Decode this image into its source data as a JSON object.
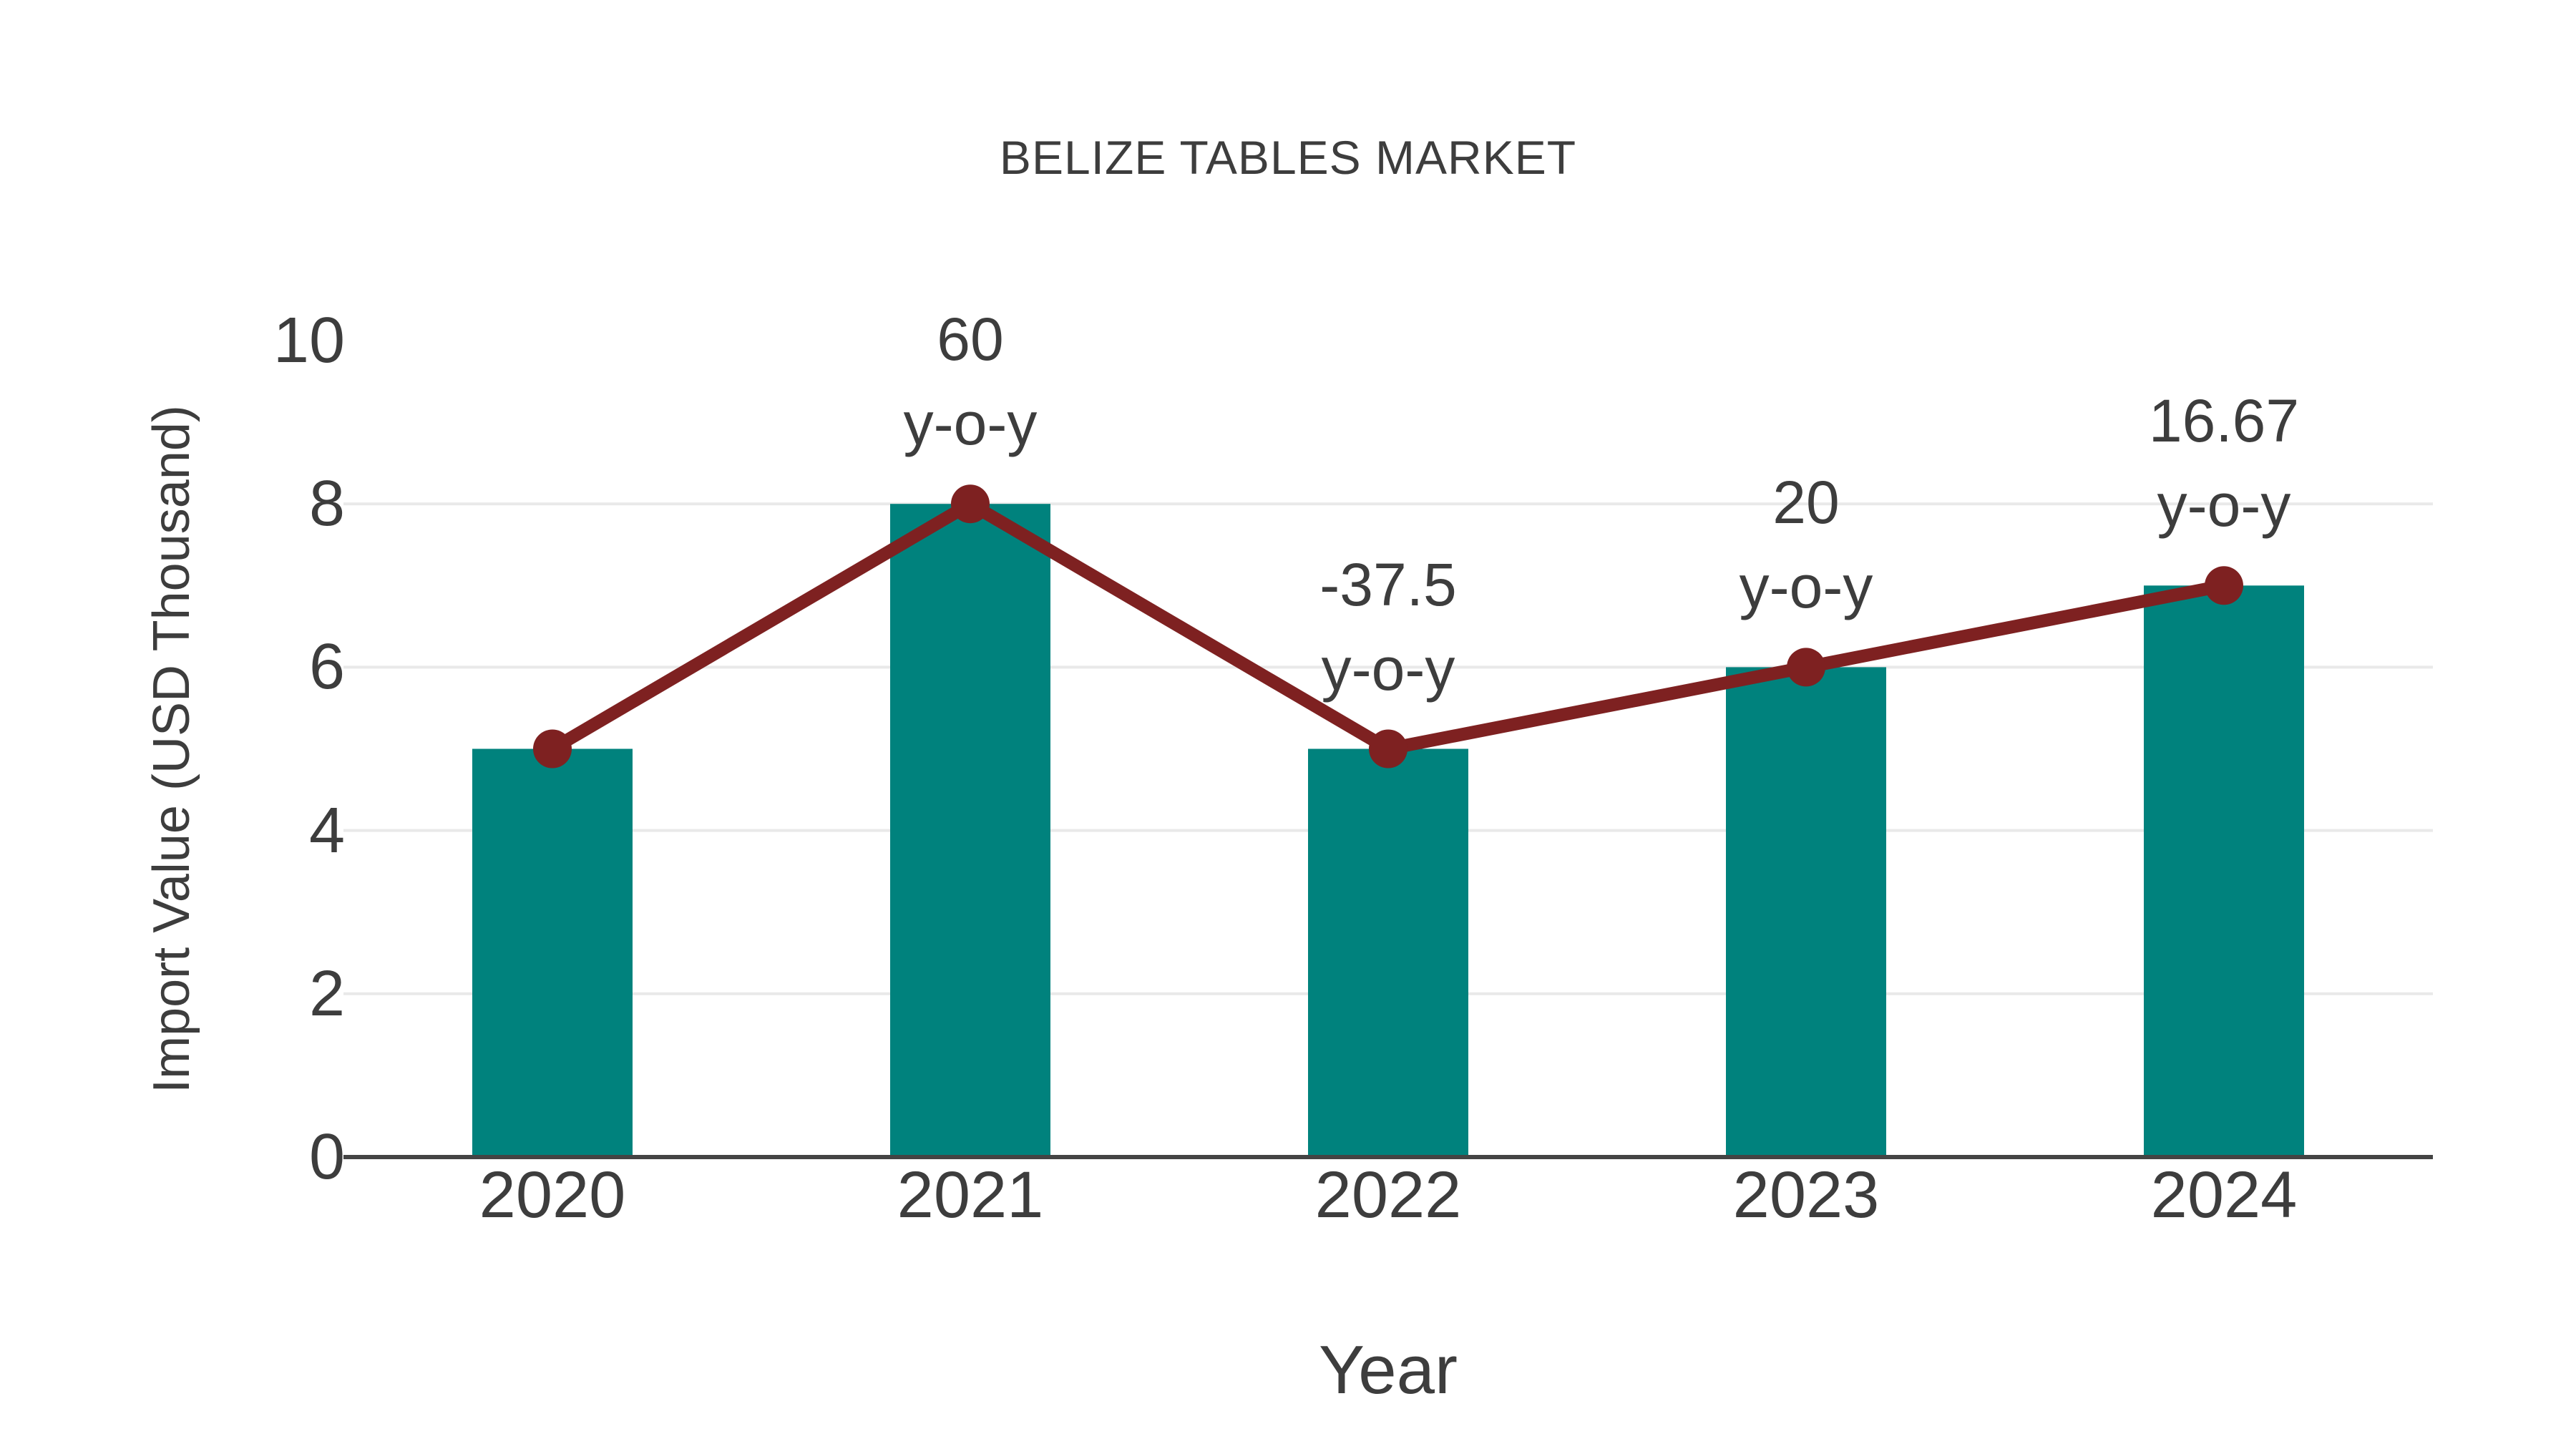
{
  "colors": {
    "background": "#FFFFFF",
    "bar": "#00827D",
    "line": "#7E2121",
    "marker": "#7E2121",
    "text": "#3D3D3D",
    "grid": "#E9E9E9",
    "axis": "#444444"
  },
  "chart_data": {
    "type": "bar",
    "title": "BELIZE TABLES MARKET",
    "xlabel": "Year",
    "ylabel": "Import Value (USD Thousand)",
    "categories": [
      "2020",
      "2021",
      "2022",
      "2023",
      "2024"
    ],
    "series": [
      {
        "name": "Import Value bars",
        "type": "bar",
        "color": "#00827D",
        "values": [
          5,
          8,
          5,
          6,
          7
        ]
      },
      {
        "name": "Import Value trend line",
        "type": "line",
        "color": "#7E2121",
        "values": [
          5,
          8,
          5,
          6,
          7
        ]
      }
    ],
    "annotations": [
      {
        "category": "2021",
        "lines": [
          "60",
          "y-o-y"
        ]
      },
      {
        "category": "2022",
        "lines": [
          "-37.5",
          "y-o-y"
        ]
      },
      {
        "category": "2023",
        "lines": [
          "20",
          "y-o-y"
        ]
      },
      {
        "category": "2024",
        "lines": [
          "16.67",
          "y-o-y"
        ]
      }
    ],
    "ylim": [
      0,
      10
    ],
    "yticks": [
      0,
      2,
      4,
      6,
      8,
      10
    ],
    "grid": {
      "horizontal": true,
      "vertical": false,
      "top_gridline_hidden": true
    },
    "legend_position": "none"
  }
}
